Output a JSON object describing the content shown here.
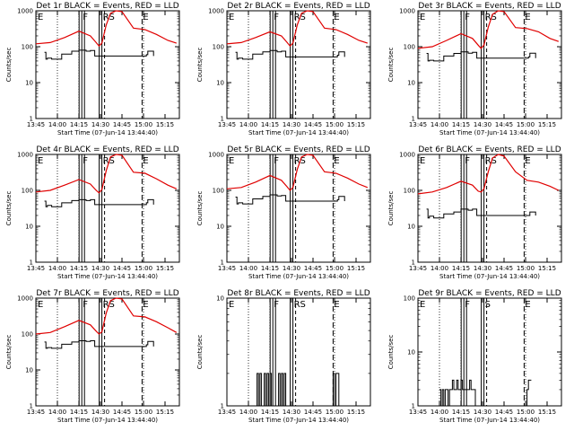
{
  "figure": {
    "background": "#ffffff",
    "events_color": "#000000",
    "lld_color": "#e00000"
  },
  "chart_data": [
    {
      "type": "line",
      "title": "Det 1r BLACK = Events, RED = LLD",
      "ylabel": "Counts/sec",
      "xlabel": "Start Time (07-Jun-14 13:44:40)",
      "xticks": [
        "13:45",
        "14:00",
        "14:15",
        "14:30",
        "14:45",
        "15:00",
        "15:15"
      ],
      "yticks": [
        "1",
        "10",
        "100",
        "1000"
      ],
      "ylog": true,
      "ylim": [
        1,
        1000
      ],
      "markers": [
        {
          "label": "E",
          "at": "13:45"
        },
        {
          "label": "F",
          "at": "14:17"
        },
        {
          "label": "RS",
          "at": "14:31"
        },
        {
          "label": "E",
          "at": "14:59"
        }
      ],
      "series": [
        {
          "name": "LLD",
          "x": [
            "13:45",
            "13:55",
            "14:05",
            "14:15",
            "14:23",
            "14:27",
            "14:29",
            "14:31",
            "14:34",
            "14:37",
            "14:41",
            "14:45",
            "14:53",
            "15:01",
            "15:09",
            "15:17",
            "15:23"
          ],
          "values": [
            120,
            130,
            180,
            270,
            200,
            130,
            105,
            125,
            400,
            850,
            1000,
            950,
            330,
            300,
            220,
            150,
            125
          ]
        },
        {
          "name": "Events",
          "x": [
            "13:51",
            "13:52",
            "13:53",
            "13:56",
            "14:03",
            "14:10",
            "14:15",
            "14:20",
            "14:23",
            "14:26",
            "15:02",
            "15:03",
            "15:06",
            "15:07"
          ],
          "values": [
            70,
            45,
            48,
            45,
            62,
            75,
            80,
            75,
            78,
            55,
            60,
            75,
            75,
            55
          ]
        }
      ]
    },
    {
      "type": "line",
      "title": "Det 2r BLACK = Events, RED = LLD",
      "ylabel": "Counts/sec",
      "xlabel": "Start Time (07-Jun-14 13:44:40)",
      "xticks": [
        "13:45",
        "14:00",
        "14:15",
        "14:30",
        "14:45",
        "15:00",
        "15:15"
      ],
      "yticks": [
        "1",
        "10",
        "100",
        "1000"
      ],
      "ylog": true,
      "ylim": [
        1,
        1000
      ],
      "markers": [
        {
          "label": "E",
          "at": "13:45"
        },
        {
          "label": "F",
          "at": "14:17"
        },
        {
          "label": "RS",
          "at": "14:31"
        },
        {
          "label": "E",
          "at": "14:59"
        }
      ],
      "series": [
        {
          "name": "LLD",
          "x": [
            "13:45",
            "13:55",
            "14:05",
            "14:15",
            "14:23",
            "14:27",
            "14:29",
            "14:31",
            "14:34",
            "14:37",
            "14:41",
            "14:45",
            "14:53",
            "15:01",
            "15:09",
            "15:17",
            "15:23"
          ],
          "values": [
            120,
            130,
            180,
            260,
            200,
            130,
            105,
            125,
            400,
            850,
            1000,
            950,
            330,
            300,
            220,
            150,
            125
          ]
        },
        {
          "name": "Events",
          "x": [
            "13:51",
            "13:52",
            "13:53",
            "13:56",
            "14:03",
            "14:10",
            "14:15",
            "14:20",
            "14:23",
            "14:26",
            "15:02",
            "15:03",
            "15:06",
            "15:07"
          ],
          "values": [
            70,
            45,
            48,
            45,
            62,
            72,
            78,
            72,
            75,
            52,
            58,
            72,
            72,
            52
          ]
        }
      ]
    },
    {
      "type": "line",
      "title": "Det 3r BLACK = Events, RED = LLD",
      "ylabel": "Counts/sec",
      "xlabel": "Start Time (07-Jun-14 13:44:40)",
      "xticks": [
        "13:45",
        "14:00",
        "14:15",
        "14:30",
        "14:45",
        "15:00",
        "15:15"
      ],
      "yticks": [
        "1",
        "10",
        "100",
        "1000"
      ],
      "ylog": true,
      "ylim": [
        1,
        1000
      ],
      "markers": [
        {
          "label": "E",
          "at": "13:45"
        },
        {
          "label": "F",
          "at": "14:17"
        },
        {
          "label": "RS",
          "at": "14:31"
        },
        {
          "label": "E",
          "at": "14:59"
        }
      ],
      "series": [
        {
          "name": "LLD",
          "x": [
            "13:45",
            "13:55",
            "14:05",
            "14:15",
            "14:23",
            "14:27",
            "14:29",
            "14:31",
            "14:34",
            "14:37",
            "14:41",
            "14:45",
            "14:53",
            "15:01",
            "15:09",
            "15:17",
            "15:23"
          ],
          "values": [
            90,
            100,
            150,
            230,
            170,
            110,
            90,
            110,
            350,
            800,
            1000,
            950,
            340,
            320,
            260,
            170,
            140
          ]
        },
        {
          "name": "Events",
          "x": [
            "13:51",
            "13:52",
            "13:53",
            "13:56",
            "14:03",
            "14:10",
            "14:15",
            "14:20",
            "14:23",
            "14:26",
            "15:02",
            "15:03",
            "15:06",
            "15:07"
          ],
          "values": [
            65,
            40,
            42,
            40,
            55,
            65,
            72,
            66,
            70,
            48,
            52,
            66,
            66,
            48
          ]
        }
      ]
    },
    {
      "type": "line",
      "title": "Det 4r BLACK = Events, RED = LLD",
      "ylabel": "Counts/sec",
      "xlabel": "Start Time (07-Jun-14 13:44:40)",
      "xticks": [
        "13:45",
        "14:00",
        "14:15",
        "14:30",
        "14:45",
        "15:00",
        "15:15"
      ],
      "yticks": [
        "1",
        "10",
        "100",
        "1000"
      ],
      "ylog": true,
      "ylim": [
        1,
        1000
      ],
      "markers": [
        {
          "label": "E",
          "at": "13:45"
        },
        {
          "label": "F",
          "at": "14:17"
        },
        {
          "label": "RS",
          "at": "14:31"
        },
        {
          "label": "E",
          "at": "14:59"
        }
      ],
      "series": [
        {
          "name": "LLD",
          "x": [
            "13:45",
            "13:55",
            "14:05",
            "14:15",
            "14:23",
            "14:27",
            "14:29",
            "14:31",
            "14:34",
            "14:37",
            "14:41",
            "14:45",
            "14:53",
            "15:01",
            "15:09",
            "15:17",
            "15:23"
          ],
          "values": [
            90,
            100,
            140,
            200,
            150,
            100,
            85,
            105,
            350,
            850,
            1000,
            950,
            320,
            300,
            210,
            140,
            110
          ]
        },
        {
          "name": "Events",
          "x": [
            "13:51",
            "13:52",
            "13:53",
            "13:56",
            "14:03",
            "14:10",
            "14:15",
            "14:20",
            "14:23",
            "14:26",
            "15:02",
            "15:03",
            "15:06",
            "15:07"
          ],
          "values": [
            50,
            35,
            38,
            35,
            45,
            52,
            55,
            52,
            55,
            40,
            45,
            55,
            55,
            40
          ]
        }
      ]
    },
    {
      "type": "line",
      "title": "Det 5r BLACK = Events, RED = LLD",
      "ylabel": "Counts/sec",
      "xlabel": "Start Time (07-Jun-14 13:44:40)",
      "xticks": [
        "13:45",
        "14:00",
        "14:15",
        "14:30",
        "14:45",
        "15:00",
        "15:15"
      ],
      "yticks": [
        "1",
        "10",
        "100",
        "1000"
      ],
      "ylog": true,
      "ylim": [
        1,
        1000
      ],
      "markers": [
        {
          "label": "E",
          "at": "13:45"
        },
        {
          "label": "F",
          "at": "14:17"
        },
        {
          "label": "RS",
          "at": "14:31"
        },
        {
          "label": "E",
          "at": "14:59"
        }
      ],
      "series": [
        {
          "name": "LLD",
          "x": [
            "13:45",
            "13:55",
            "14:05",
            "14:15",
            "14:23",
            "14:27",
            "14:29",
            "14:31",
            "14:34",
            "14:37",
            "14:41",
            "14:45",
            "14:53",
            "15:01",
            "15:09",
            "15:17",
            "15:23"
          ],
          "values": [
            110,
            120,
            170,
            260,
            190,
            125,
            100,
            120,
            380,
            850,
            1000,
            950,
            330,
            300,
            220,
            150,
            120
          ]
        },
        {
          "name": "Events",
          "x": [
            "13:51",
            "13:52",
            "13:53",
            "13:56",
            "14:03",
            "14:10",
            "14:15",
            "14:20",
            "14:23",
            "14:26",
            "15:02",
            "15:03",
            "15:06",
            "15:07"
          ],
          "values": [
            65,
            42,
            45,
            42,
            58,
            68,
            75,
            70,
            72,
            50,
            55,
            68,
            68,
            50
          ]
        }
      ]
    },
    {
      "type": "line",
      "title": "Det 6r BLACK = Events, RED = LLD",
      "ylabel": "Counts/sec",
      "xlabel": "Start Time (07-Jun-14 13:44:40)",
      "xticks": [
        "13:45",
        "14:00",
        "14:15",
        "14:30",
        "14:45",
        "15:00",
        "15:15"
      ],
      "yticks": [
        "1",
        "10",
        "100",
        "1000"
      ],
      "ylog": true,
      "ylim": [
        1,
        1000
      ],
      "markers": [
        {
          "label": "E",
          "at": "13:45"
        },
        {
          "label": "F",
          "at": "14:17"
        },
        {
          "label": "RS",
          "at": "14:31"
        },
        {
          "label": "E",
          "at": "14:59"
        }
      ],
      "series": [
        {
          "name": "LLD",
          "x": [
            "13:45",
            "13:55",
            "14:05",
            "14:15",
            "14:23",
            "14:27",
            "14:29",
            "14:31",
            "14:34",
            "14:37",
            "14:41",
            "14:45",
            "14:53",
            "15:01",
            "15:09",
            "15:17",
            "15:23"
          ],
          "values": [
            80,
            90,
            120,
            180,
            140,
            95,
            90,
            110,
            330,
            800,
            1000,
            900,
            330,
            190,
            170,
            130,
            100
          ]
        },
        {
          "name": "Events",
          "x": [
            "13:51",
            "13:52",
            "13:53",
            "13:56",
            "14:03",
            "14:10",
            "14:15",
            "14:20",
            "14:23",
            "14:26",
            "15:02",
            "15:03",
            "15:06",
            "15:07"
          ],
          "values": [
            30,
            17,
            19,
            17,
            22,
            25,
            30,
            28,
            30,
            20,
            20,
            25,
            25,
            20
          ]
        }
      ]
    },
    {
      "type": "line",
      "title": "Det 7r BLACK = Events, RED = LLD",
      "ylabel": "Counts/sec",
      "xlabel": "Start Time (07-Jun-14 13:44:40)",
      "xticks": [
        "13:45",
        "14:00",
        "14:15",
        "14:30",
        "14:45",
        "15:00",
        "15:15"
      ],
      "yticks": [
        "1",
        "10",
        "100",
        "1000"
      ],
      "ylog": true,
      "ylim": [
        1,
        1000
      ],
      "markers": [
        {
          "label": "E",
          "at": "13:45"
        },
        {
          "label": "F",
          "at": "14:17"
        },
        {
          "label": "RS",
          "at": "14:31"
        },
        {
          "label": "E",
          "at": "14:59"
        }
      ],
      "series": [
        {
          "name": "LLD",
          "x": [
            "13:45",
            "13:55",
            "14:05",
            "14:15",
            "14:23",
            "14:27",
            "14:29",
            "14:31",
            "14:34",
            "14:37",
            "14:41",
            "14:45",
            "14:53",
            "15:01",
            "15:09",
            "15:17",
            "15:23"
          ],
          "values": [
            100,
            110,
            160,
            240,
            180,
            120,
            100,
            115,
            380,
            850,
            1000,
            950,
            320,
            300,
            220,
            150,
            110
          ]
        },
        {
          "name": "Events",
          "x": [
            "13:51",
            "13:52",
            "13:53",
            "13:56",
            "14:03",
            "14:10",
            "14:15",
            "14:20",
            "14:23",
            "14:26",
            "15:02",
            "15:03",
            "15:06",
            "15:07"
          ],
          "values": [
            60,
            40,
            42,
            40,
            52,
            60,
            65,
            62,
            65,
            45,
            50,
            62,
            62,
            45
          ]
        }
      ]
    },
    {
      "type": "line",
      "title": "Det 8r BLACK = Events, RED = LLD",
      "ylabel": "Counts/sec",
      "xlabel": "Start Time (07-Jun-14 13:44:40)",
      "xticks": [
        "13:45",
        "14:00",
        "14:15",
        "14:30",
        "14:45",
        "15:00",
        "15:15"
      ],
      "yticks": [
        "1",
        "10"
      ],
      "ylog": true,
      "ylim": [
        1,
        10
      ],
      "markers": [
        {
          "label": "E",
          "at": "13:45"
        },
        {
          "label": "F",
          "at": "14:17"
        },
        {
          "label": "RS",
          "at": "14:31"
        },
        {
          "label": "E",
          "at": "14:59"
        }
      ],
      "series": [
        {
          "name": "Events",
          "x": [
            "14:05",
            "14:06",
            "14:07",
            "14:08",
            "14:09",
            "14:10",
            "14:11",
            "14:12",
            "14:13",
            "14:14",
            "14:15",
            "14:16",
            "14:20",
            "14:21",
            "14:22",
            "14:23",
            "14:24",
            "14:25",
            "14:26",
            "14:59",
            "15:00",
            "15:01",
            "15:02",
            "15:03"
          ],
          "values": [
            1,
            2,
            1,
            2,
            1,
            1,
            2,
            1,
            2,
            1,
            2,
            1,
            1,
            2,
            1,
            2,
            1,
            2,
            1,
            2,
            1,
            2,
            2,
            1
          ]
        }
      ]
    },
    {
      "type": "line",
      "title": "Det 9r BLACK = Events, RED = LLD",
      "ylabel": "Counts/sec",
      "xlabel": "Start Time (07-Jun-14 13:44:40)",
      "xticks": [
        "13:45",
        "14:00",
        "14:15",
        "14:30",
        "14:45",
        "15:00",
        "15:15"
      ],
      "yticks": [
        "1",
        "10",
        "100"
      ],
      "ylog": true,
      "ylim": [
        1,
        100
      ],
      "markers": [
        {
          "label": "E",
          "at": "13:45"
        },
        {
          "label": "F",
          "at": "14:17"
        },
        {
          "label": "S",
          "at": "14:31"
        },
        {
          "label": "E",
          "at": "14:59"
        }
      ],
      "series": [
        {
          "name": "Events",
          "x": [
            "14:00",
            "14:01",
            "14:02",
            "14:03",
            "14:04",
            "14:05",
            "14:06",
            "14:07",
            "14:08",
            "14:09",
            "14:10",
            "14:11",
            "14:12",
            "14:13",
            "14:14",
            "14:15",
            "14:16",
            "14:18",
            "14:20",
            "14:21",
            "14:22",
            "14:23",
            "14:24",
            "14:25",
            "15:01",
            "15:02",
            "15:03",
            "15:04"
          ],
          "values": [
            2,
            1,
            2,
            1,
            2,
            2,
            1,
            2,
            2,
            3,
            2,
            2,
            3,
            2,
            2,
            3,
            2,
            2,
            2,
            3,
            2,
            2,
            2,
            1,
            2,
            3,
            3,
            3
          ]
        }
      ]
    }
  ]
}
